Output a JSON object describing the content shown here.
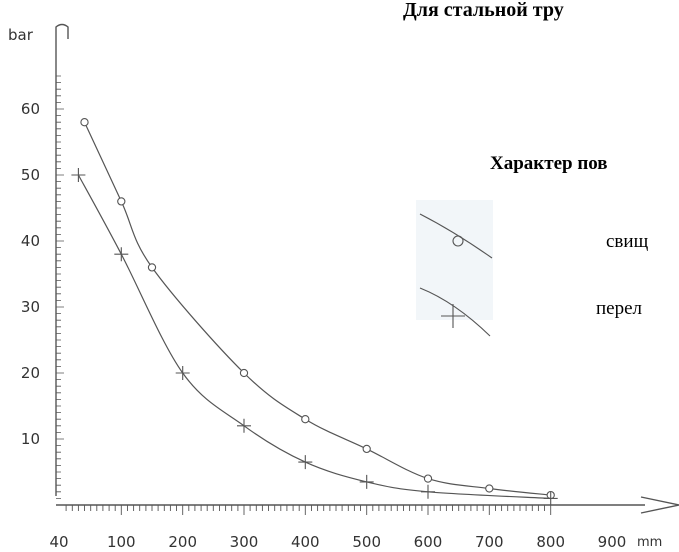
{
  "chart_data": {
    "type": "line",
    "title": "Для стальной тру",
    "xlabel": "mm",
    "ylabel": "bar",
    "xlim": [
      0,
      900
    ],
    "ylim": [
      0,
      60
    ],
    "x_ticks": [
      "40",
      "100",
      "200",
      "300",
      "400",
      "500",
      "600",
      "700",
      "800",
      "900"
    ],
    "y_ticks": [
      "10",
      "20",
      "30",
      "40",
      "50",
      "60"
    ],
    "legend_title": "Характер пов",
    "series": [
      {
        "name": "свищ",
        "marker": "circle",
        "points": [
          [
            40,
            58
          ],
          [
            100,
            46
          ],
          [
            150,
            36
          ],
          [
            300,
            20
          ],
          [
            400,
            13
          ],
          [
            500,
            8.5
          ],
          [
            600,
            4
          ],
          [
            700,
            2.5
          ],
          [
            800,
            1.5
          ]
        ]
      },
      {
        "name": "перел",
        "marker": "plus",
        "points": [
          [
            30,
            50
          ],
          [
            100,
            38
          ],
          [
            200,
            20
          ],
          [
            300,
            12
          ],
          [
            400,
            6.5
          ],
          [
            500,
            3.5
          ],
          [
            600,
            2
          ],
          [
            800,
            1
          ]
        ]
      }
    ],
    "grid": false,
    "legend_position": "right",
    "colors": {
      "line": "#555555",
      "text": "#333333",
      "legend_bg": "#f2f6f9"
    }
  }
}
